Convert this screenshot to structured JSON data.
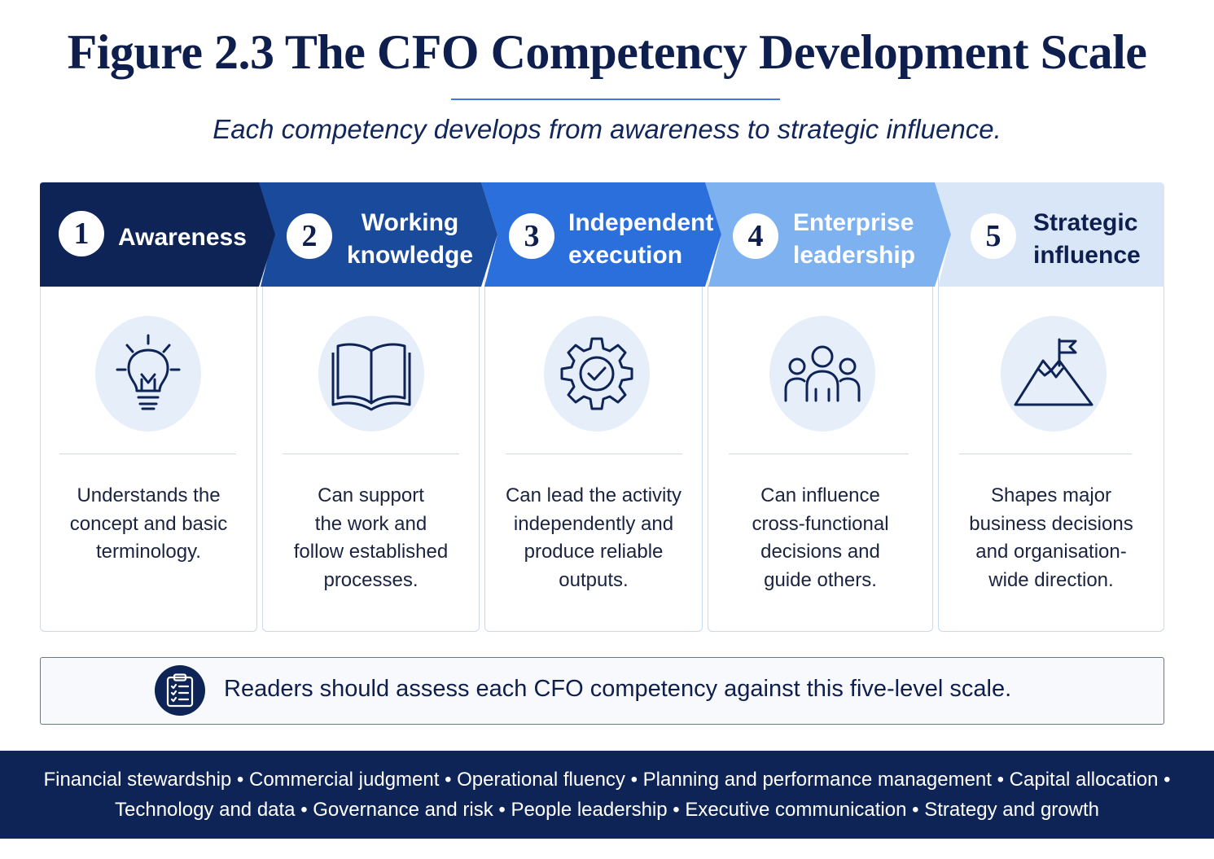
{
  "title": "Figure 2.3 The CFO Competency Development Scale",
  "subtitle": "Each competency develops from awareness to strategic influence.",
  "colors": {
    "navy": "#0f2456",
    "level1": "#0f2456",
    "level2": "#1a4a9c",
    "level3": "#2a6fdc",
    "level4": "#7eb1ef",
    "level5": "#d9e6f8",
    "icon_background": "#e6eefa"
  },
  "levels": [
    {
      "number": "1",
      "label": "Awareness",
      "icon": "lightbulb-icon",
      "description": "Understands the\nconcept and basic\nterminology."
    },
    {
      "number": "2",
      "label": "Working\nknowledge",
      "icon": "open-book-icon",
      "description": "Can support\nthe work and\nfollow established\nprocesses."
    },
    {
      "number": "3",
      "label": "Independent\nexecution",
      "icon": "gear-check-icon",
      "description": "Can lead the activity\nindependently and\nproduce reliable\noutputs."
    },
    {
      "number": "4",
      "label": "Enterprise\nleadership",
      "icon": "team-icon",
      "description": "Can influence\ncross-functional\ndecisions and\nguide others."
    },
    {
      "number": "5",
      "label": "Strategic\ninfluence",
      "icon": "mountain-flag-icon",
      "description": "Shapes major\nbusiness decisions\nand organisation-\nwide direction."
    }
  ],
  "note": {
    "icon": "clipboard-checklist-icon",
    "text": "Readers should assess each CFO competency against this five-level scale."
  },
  "footer": {
    "line1": "Financial stewardship  •  Commercial judgment  •  Operational fluency  •  Planning and performance management  •  Capital allocation  •",
    "line2": "Technology and data  •  Governance and risk  •  People leadership  •  Executive communication  •  Strategy and growth"
  }
}
